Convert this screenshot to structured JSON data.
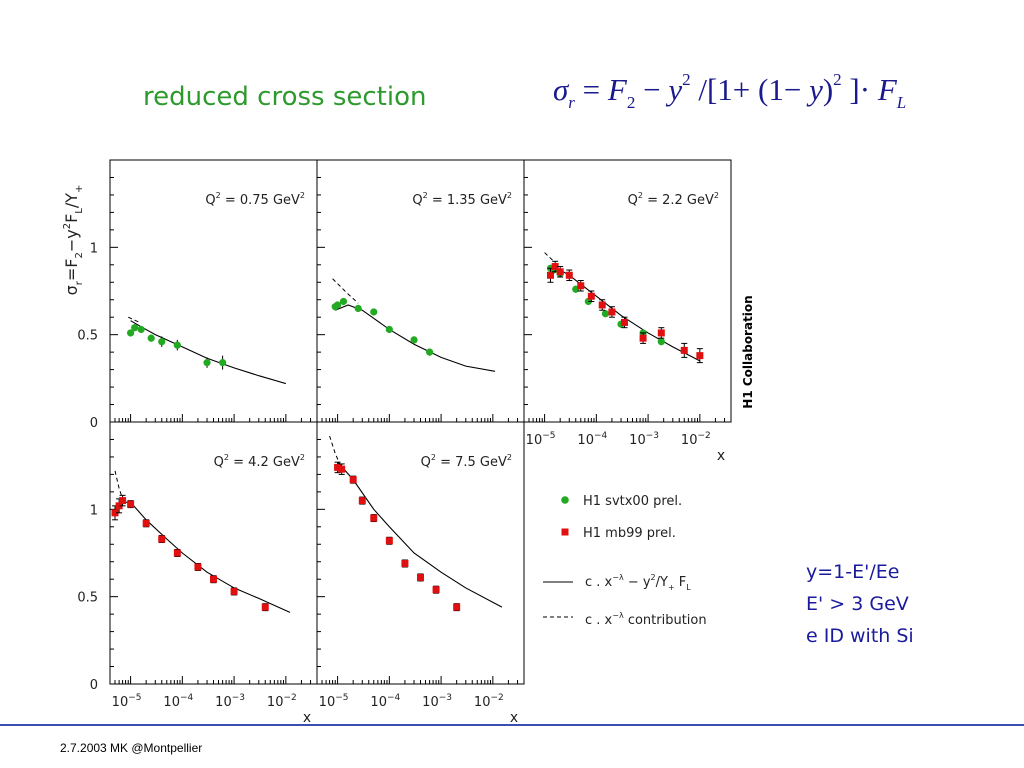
{
  "slide": {
    "title": "reduced cross section",
    "footer": "2.7.2003 MK @Montpellier",
    "notes": [
      "y=1-E'/Ee",
      "E' > 3 GeV",
      "e ID with Si"
    ]
  },
  "colors": {
    "title": "#2e9a2e",
    "formula": "#1a1a8c",
    "notes": "#1a1a9c",
    "svtx": "#22aa22",
    "mb99": "#e01010",
    "rule": "#3c4fae"
  },
  "chart_data": {
    "type": "scatter",
    "ylabel_parts": [
      "σ",
      "r",
      "=F",
      "2",
      "−y",
      "2",
      "F",
      "L",
      "/Y",
      "+"
    ],
    "xlabel": "x",
    "collaboration": "H1 Collaboration",
    "x_scale": "log",
    "xlim": [
      4e-06,
      0.04
    ],
    "ylim": [
      0,
      1.5
    ],
    "yticks": [
      {
        "v": 0,
        "label": "0"
      },
      {
        "v": 0.5,
        "label": "0.5"
      },
      {
        "v": 1,
        "label": "1"
      }
    ],
    "xticks": [
      {
        "v": 1e-05,
        "mant": "10",
        "exp": "−5"
      },
      {
        "v": 0.0001,
        "mant": "10",
        "exp": "−4"
      },
      {
        "v": 0.001,
        "mant": "10",
        "exp": "−3"
      },
      {
        "v": 0.01,
        "mant": "10",
        "exp": "−2"
      }
    ],
    "legend": [
      {
        "kind": "green-circle",
        "label": "H1 svtx00 prel."
      },
      {
        "kind": "red-square",
        "label": "H1 mb99 prel."
      },
      {
        "kind": "solid-line",
        "parts": [
          "c . x",
          "−λ",
          " − y",
          "2",
          "/Y",
          "+",
          " F",
          "L"
        ]
      },
      {
        "kind": "dashed-line",
        "parts": [
          "c . x",
          "−λ",
          " contribution"
        ]
      }
    ],
    "panels": [
      {
        "q2": "0.75",
        "label": [
          "Q",
          "2",
          " = 0.75 GeV",
          "2"
        ],
        "solid": [
          [
            1e-05,
            0.58
          ],
          [
            1.6e-05,
            0.545
          ],
          [
            3e-05,
            0.5
          ],
          [
            0.0001,
            0.43
          ],
          [
            0.0003,
            0.365
          ],
          [
            0.001,
            0.31
          ],
          [
            0.003,
            0.265
          ],
          [
            0.01,
            0.22
          ]
        ],
        "dashed": [
          [
            9e-06,
            0.6
          ],
          [
            1.5e-05,
            0.57
          ]
        ],
        "svtx": [
          [
            1e-05,
            0.51,
            0.02
          ],
          [
            1.2e-05,
            0.54,
            0.02
          ],
          [
            1.6e-05,
            0.53,
            0.02
          ],
          [
            2.5e-05,
            0.48,
            0.02
          ],
          [
            4e-05,
            0.46,
            0.03
          ],
          [
            8e-05,
            0.44,
            0.03
          ],
          [
            0.0003,
            0.34,
            0.03
          ],
          [
            0.0006,
            0.34,
            0.04
          ]
        ],
        "mb99": []
      },
      {
        "q2": "1.35",
        "label": [
          "Q",
          "2",
          " = 1.35 GeV",
          "2"
        ],
        "solid": [
          [
            9e-06,
            0.64
          ],
          [
            1.6e-05,
            0.67
          ],
          [
            3e-05,
            0.64
          ],
          [
            0.0001,
            0.53
          ],
          [
            0.0003,
            0.445
          ],
          [
            0.001,
            0.37
          ],
          [
            0.003,
            0.32
          ],
          [
            0.011,
            0.29
          ]
        ],
        "dashed": [
          [
            8e-06,
            0.82
          ],
          [
            1.5e-05,
            0.74
          ],
          [
            2.5e-05,
            0.68
          ]
        ],
        "svtx": [
          [
            9e-06,
            0.66,
            0.02
          ],
          [
            1e-05,
            0.67,
            0.02
          ],
          [
            1.3e-05,
            0.69,
            0.02
          ],
          [
            2.5e-05,
            0.65,
            0.02
          ],
          [
            5e-05,
            0.63,
            0.02
          ],
          [
            0.0001,
            0.53,
            0.02
          ],
          [
            0.0003,
            0.47,
            0.02
          ],
          [
            0.0006,
            0.4,
            0.02
          ]
        ],
        "mb99": []
      },
      {
        "q2": "2.2",
        "label": [
          "Q",
          "2",
          " = 2.2 GeV",
          "2"
        ],
        "solid": [
          [
            1.3e-05,
            0.88
          ],
          [
            2e-05,
            0.87
          ],
          [
            3e-05,
            0.84
          ],
          [
            0.0001,
            0.72
          ],
          [
            0.0003,
            0.61
          ],
          [
            0.001,
            0.51
          ],
          [
            0.003,
            0.43
          ],
          [
            0.01,
            0.35
          ]
        ],
        "dashed": [
          [
            1e-05,
            0.97
          ],
          [
            1.5e-05,
            0.92
          ]
        ],
        "svtx": [
          [
            1.3e-05,
            0.88,
            0.02
          ],
          [
            1.5e-05,
            0.87,
            0.02
          ],
          [
            2e-05,
            0.85,
            0.02
          ],
          [
            4e-05,
            0.76,
            0.02
          ],
          [
            7e-05,
            0.69,
            0.02
          ],
          [
            0.00015,
            0.62,
            0.02
          ],
          [
            0.0003,
            0.56,
            0.02
          ],
          [
            0.0008,
            0.51,
            0.02
          ],
          [
            0.0018,
            0.46,
            0.02
          ]
        ],
        "mb99": [
          [
            1.3e-05,
            0.84,
            0.04
          ],
          [
            1.6e-05,
            0.89,
            0.03
          ],
          [
            2e-05,
            0.86,
            0.03
          ],
          [
            3e-05,
            0.84,
            0.03
          ],
          [
            5e-05,
            0.78,
            0.03
          ],
          [
            8e-05,
            0.72,
            0.03
          ],
          [
            0.00013,
            0.67,
            0.03
          ],
          [
            0.0002,
            0.63,
            0.03
          ],
          [
            0.00035,
            0.57,
            0.03
          ],
          [
            0.0008,
            0.48,
            0.03
          ],
          [
            0.0018,
            0.51,
            0.03
          ],
          [
            0.005,
            0.41,
            0.04
          ],
          [
            0.01,
            0.38,
            0.04
          ]
        ]
      },
      {
        "q2": "4.2",
        "label": [
          "Q",
          "2",
          " = 4.2 GeV",
          "2"
        ],
        "solid": [
          [
            5.5e-06,
            1.0
          ],
          [
            7e-06,
            1.04
          ],
          [
            1e-05,
            1.04
          ],
          [
            2e-05,
            0.94
          ],
          [
            5e-05,
            0.83
          ],
          [
            0.0001,
            0.75
          ],
          [
            0.0003,
            0.64
          ],
          [
            0.001,
            0.55
          ],
          [
            0.003,
            0.49
          ],
          [
            0.012,
            0.41
          ]
        ],
        "dashed": [
          [
            5e-06,
            1.22
          ],
          [
            6e-06,
            1.12
          ],
          [
            7e-06,
            1.06
          ]
        ],
        "svtx": [],
        "mb99": [
          [
            5e-06,
            0.98,
            0.04
          ],
          [
            6e-06,
            1.02,
            0.04
          ],
          [
            7e-06,
            1.05,
            0.03
          ],
          [
            1e-05,
            1.03,
            0.02
          ],
          [
            2e-05,
            0.92,
            0.02
          ],
          [
            4e-05,
            0.83,
            0.02
          ],
          [
            8e-05,
            0.75,
            0.02
          ],
          [
            0.0002,
            0.67,
            0.02
          ],
          [
            0.0004,
            0.6,
            0.02
          ],
          [
            0.001,
            0.53,
            0.02
          ],
          [
            0.004,
            0.44,
            0.02
          ]
        ]
      },
      {
        "q2": "7.5",
        "label": [
          "Q",
          "2",
          " = 7.5 GeV",
          "2"
        ],
        "solid": [
          [
            1e-05,
            1.27
          ],
          [
            2e-05,
            1.17
          ],
          [
            5e-05,
            1.0
          ],
          [
            0.0001,
            0.9
          ],
          [
            0.0003,
            0.75
          ],
          [
            0.001,
            0.64
          ],
          [
            0.003,
            0.55
          ],
          [
            0.015,
            0.44
          ]
        ],
        "dashed": [
          [
            7e-06,
            1.42
          ],
          [
            9e-06,
            1.32
          ],
          [
            1.1e-05,
            1.26
          ]
        ],
        "svtx": [],
        "mb99": [
          [
            1e-05,
            1.24,
            0.03
          ],
          [
            1.2e-05,
            1.23,
            0.03
          ],
          [
            2e-05,
            1.17,
            0.02
          ],
          [
            3e-05,
            1.05,
            0.02
          ],
          [
            5e-05,
            0.95,
            0.02
          ],
          [
            0.0001,
            0.82,
            0.02
          ],
          [
            0.0002,
            0.69,
            0.02
          ],
          [
            0.0004,
            0.61,
            0.02
          ],
          [
            0.0008,
            0.54,
            0.02
          ],
          [
            0.002,
            0.44,
            0.02
          ]
        ]
      }
    ]
  }
}
